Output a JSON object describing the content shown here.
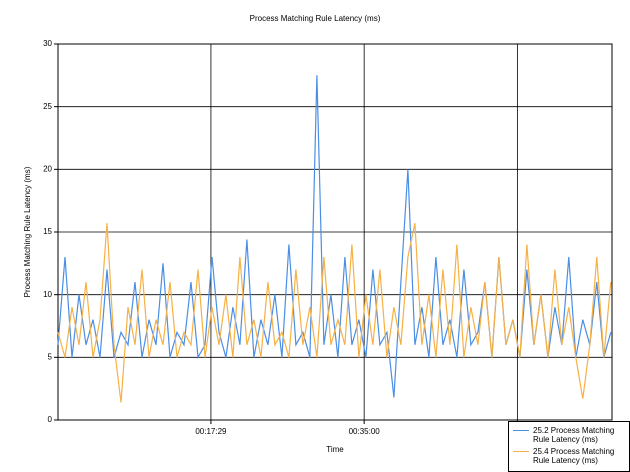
{
  "chart_data": {
    "type": "line",
    "title": "Process Matching Rule Latency (ms)",
    "x_label": "Time",
    "y_label": "Process Matching Rule Latency (ms)",
    "x": [
      0,
      48,
      96,
      144,
      192,
      240,
      288,
      336,
      384,
      432,
      480,
      528,
      576,
      624,
      672,
      720,
      768,
      816,
      864,
      912,
      960,
      1008,
      1056,
      1104,
      1152,
      1200,
      1248,
      1296,
      1344,
      1392,
      1440,
      1488,
      1536,
      1584,
      1632,
      1680,
      1728,
      1776,
      1824,
      1872,
      1920,
      1968,
      2016,
      2064,
      2112,
      2160,
      2208,
      2256,
      2304,
      2352,
      2400,
      2448,
      2496,
      2544,
      2592,
      2640,
      2688,
      2736,
      2784,
      2832,
      2880,
      2928,
      2976,
      3024,
      3072,
      3120,
      3168,
      3216,
      3264,
      3312,
      3360,
      3408,
      3456,
      3504,
      3552,
      3600,
      3648,
      3696,
      3744,
      3792
    ],
    "series": [
      {
        "name": "25.2 Process Matching Rule Latency (ms)",
        "color": "#4a8ee6",
        "values": [
          6,
          13,
          5,
          10,
          6,
          8,
          5,
          12,
          5,
          7,
          6,
          11,
          5,
          8,
          6,
          12.5,
          5,
          7,
          6,
          11,
          5,
          6,
          13,
          7,
          5,
          9,
          6,
          14.4,
          5,
          8,
          6,
          10,
          5,
          14,
          6,
          7,
          5,
          27.5,
          6,
          10,
          5,
          13,
          6,
          8,
          5,
          12,
          6,
          7,
          1.8,
          11,
          20,
          6,
          9,
          5,
          13,
          6,
          8,
          5,
          12,
          6,
          7,
          11,
          5,
          13,
          6,
          8,
          5,
          12,
          6,
          10,
          5,
          9,
          6,
          13,
          5,
          8,
          6,
          11,
          5,
          7
        ]
      },
      {
        "name": "25.4 Process Matching Rule Latency (ms)",
        "color": "#f7b044",
        "values": [
          7,
          5,
          9,
          6,
          11,
          5,
          8,
          15.7,
          6,
          1.4,
          9,
          6,
          12,
          5,
          8,
          6,
          11,
          5,
          7,
          6,
          12,
          5,
          9,
          6,
          10,
          5,
          13,
          6,
          8,
          5,
          11,
          6,
          7,
          5,
          12,
          6,
          9,
          5,
          13,
          6,
          8,
          6,
          14,
          5,
          10,
          6,
          12,
          5,
          9,
          6,
          13,
          15.7,
          6,
          10,
          5,
          12,
          6,
          14,
          5,
          9,
          6,
          11,
          5,
          13,
          6,
          8,
          5,
          14,
          6,
          10,
          5,
          12,
          6,
          9,
          5,
          1.7,
          6,
          13,
          5,
          11
        ]
      }
    ],
    "xlim": [
      0,
      3800
    ],
    "xticks": [
      {
        "value": 1049,
        "label": "00:17:29"
      },
      {
        "value": 2100,
        "label": "00:35:00"
      },
      {
        "value": 3151,
        "label": null
      }
    ],
    "ylim": [
      0,
      30
    ],
    "yticks": [
      0,
      5,
      10,
      15,
      20,
      25,
      30
    ],
    "grid": true,
    "legend": "lower right"
  }
}
